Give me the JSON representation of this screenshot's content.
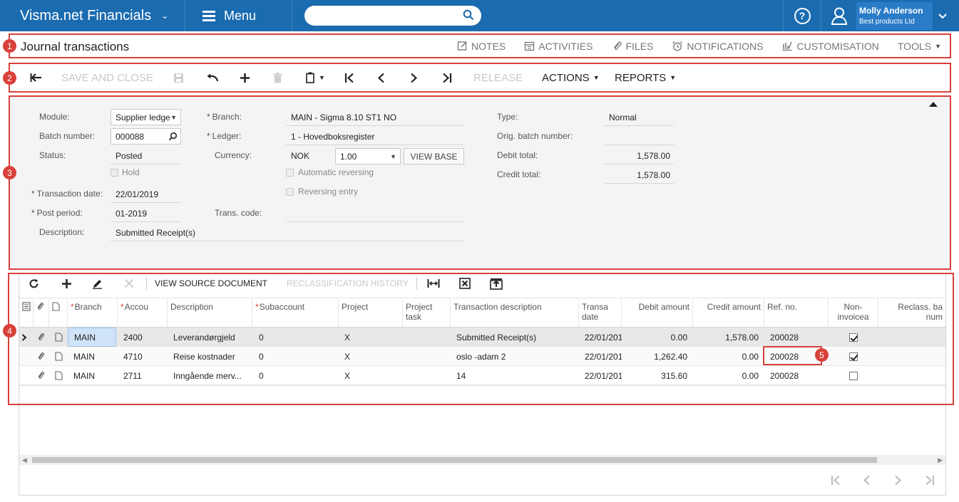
{
  "app": {
    "title": "Visma.net Financials",
    "menu_label": "Menu",
    "search_placeholder": "",
    "user_name": "Molly Anderson",
    "user_company": "Best products Ltd"
  },
  "page": {
    "title": "Journal transactions",
    "tools": [
      "NOTES",
      "ACTIVITIES",
      "FILES",
      "NOTIFICATIONS",
      "CUSTOMISATION",
      "TOOLS"
    ]
  },
  "toolbar": {
    "save_close": "SAVE AND CLOSE",
    "release": "RELEASE",
    "actions": "ACTIONS",
    "reports": "REPORTS"
  },
  "form": {
    "module_label": "Module:",
    "module_value": "Supplier ledge",
    "batch_label": "Batch number:",
    "batch_value": "000088",
    "status_label": "Status:",
    "status_value": "Posted",
    "hold_label": "Hold",
    "trans_date_label": "Transaction date:",
    "trans_date_value": "22/01/2019",
    "post_period_label": "Post period:",
    "post_period_value": "01-2019",
    "description_label": "Description:",
    "description_value": "Submitted Receipt(s)",
    "branch_label": "Branch:",
    "branch_value": "MAIN - Sigma 8.10 ST1 NO",
    "ledger_label": "Ledger:",
    "ledger_value": "1 - Hovedboksregister",
    "currency_label": "Currency:",
    "currency_code": "NOK",
    "currency_rate": "1.00",
    "view_base": "VIEW BASE",
    "auto_reversing_label": "Automatic reversing",
    "reversing_entry_label": "Reversing entry",
    "trans_code_label": "Trans. code:",
    "type_label": "Type:",
    "type_value": "Normal",
    "orig_batch_label": "Orig. batch number:",
    "debit_total_label": "Debit total:",
    "debit_total_value": "1,578.00",
    "credit_total_label": "Credit total:",
    "credit_total_value": "1,578.00"
  },
  "grid": {
    "view_source": "VIEW SOURCE DOCUMENT",
    "reclass_history": "RECLASSIFICATION HISTORY",
    "columns": {
      "branch": "Branch",
      "account": "Accou",
      "description": "Description",
      "subaccount": "Subaccount",
      "project": "Project",
      "project_task": "Project task",
      "trans_desc": "Transaction description",
      "trans_date": "Transa date",
      "debit": "Debit amount",
      "credit": "Credit amount",
      "ref": "Ref. no.",
      "non_invoiced": "Non- invoicea",
      "reclass": "Reclass. ba num"
    },
    "rows": [
      {
        "branch": "MAIN",
        "account": "2400",
        "description": "Leverandørgjeld",
        "subaccount": "0",
        "project": "X",
        "trans_desc": "Submitted Receipt(s)",
        "trans_date": "22/01/201",
        "debit": "0.00",
        "credit": "1,578.00",
        "ref": "200028",
        "non_invoiced": true
      },
      {
        "branch": "MAIN",
        "account": "4710",
        "description": "Reise kostnader",
        "subaccount": "0",
        "project": "X",
        "trans_desc": "oslo -adam 2",
        "trans_date": "22/01/201",
        "debit": "1,262.40",
        "credit": "0.00",
        "ref": "200028",
        "non_invoiced": true
      },
      {
        "branch": "MAIN",
        "account": "2711",
        "description": "Inngående merv...",
        "subaccount": "0",
        "project": "X",
        "trans_desc": "14",
        "trans_date": "22/01/201",
        "debit": "315.60",
        "credit": "0.00",
        "ref": "200028",
        "non_invoiced": false
      }
    ]
  },
  "callouts": [
    "1",
    "2",
    "3",
    "4",
    "5"
  ],
  "colors": {
    "topbar": "#1b6bb0",
    "highlight": "#d9403a",
    "selected_cell": "#cfe4f7"
  }
}
